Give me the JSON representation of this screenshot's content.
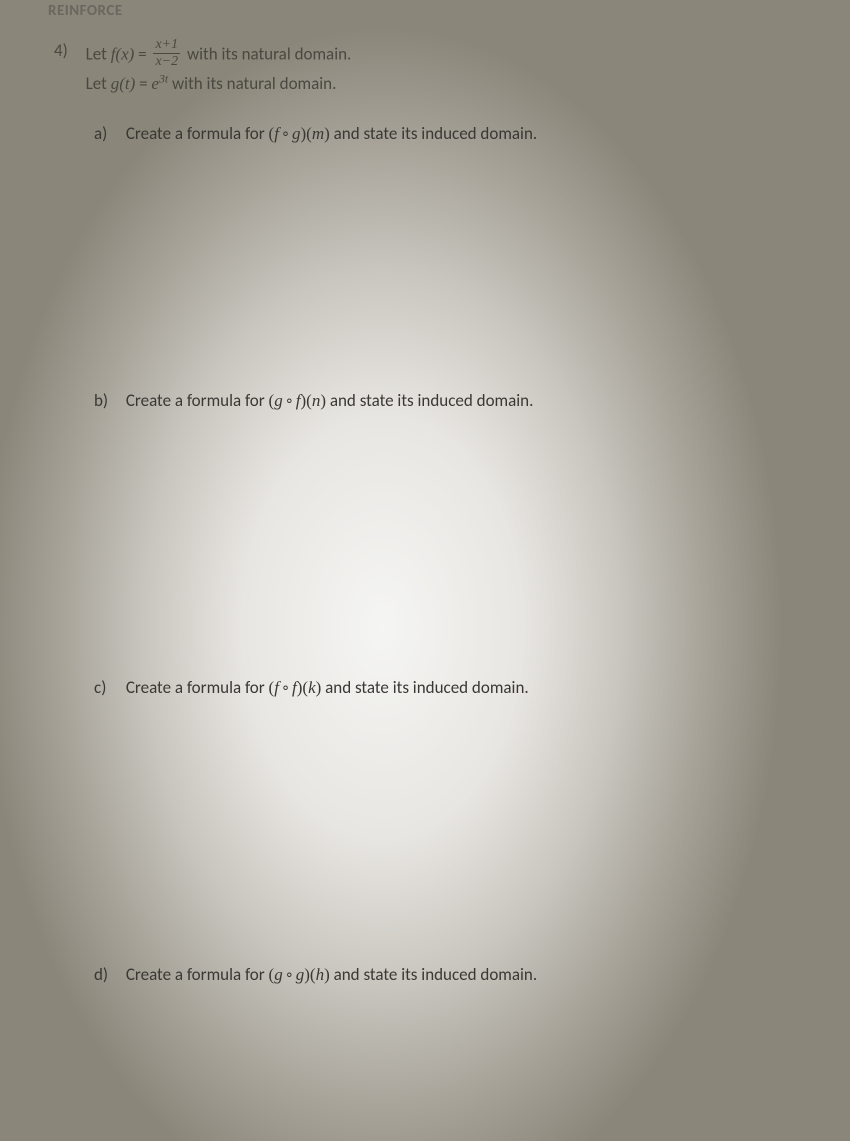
{
  "header": "REINFORCE",
  "problem": {
    "number": "4)",
    "f_def_pre": "Let ",
    "f_lhs": "f(x)",
    "f_eq": " = ",
    "f_frac_num": "x+1",
    "f_frac_den": "x−2",
    "f_def_post": " with its natural domain.",
    "g_def_pre": "Let ",
    "g_lhs": "g(t)",
    "g_eq": " = ",
    "g_rhs_base": "e",
    "g_rhs_exp": "3t",
    "g_def_post": " with its natural domain."
  },
  "parts": {
    "a": {
      "label": "a)",
      "pre": "Create a formula for ",
      "expr_open": "(",
      "fn1": "f",
      "op": "∘",
      "fn2": "g",
      "expr_close": ")(",
      "var": "m",
      "expr_end": ")",
      "post": " and state its induced domain."
    },
    "b": {
      "label": "b)",
      "pre": "Create a formula for ",
      "expr_open": "(",
      "fn1": "g",
      "op": "∘",
      "fn2": "f",
      "expr_close": ")(",
      "var": "n",
      "expr_end": ")",
      "post": " and state its induced domain."
    },
    "c": {
      "label": "c)",
      "pre": "Create a formula for ",
      "expr_open": "(",
      "fn1": "f",
      "op": "∘",
      "fn2": "f",
      "expr_close": ")(",
      "var": "k",
      "expr_end": ")",
      "post": " and state its induced domain."
    },
    "d": {
      "label": "d)",
      "pre": "Create a formula for ",
      "expr_open": "(",
      "fn1": "g",
      "op": "∘",
      "fn2": "g",
      "expr_close": ")(",
      "var": "h",
      "expr_end": ")",
      "post": " and state its induced domain."
    }
  }
}
